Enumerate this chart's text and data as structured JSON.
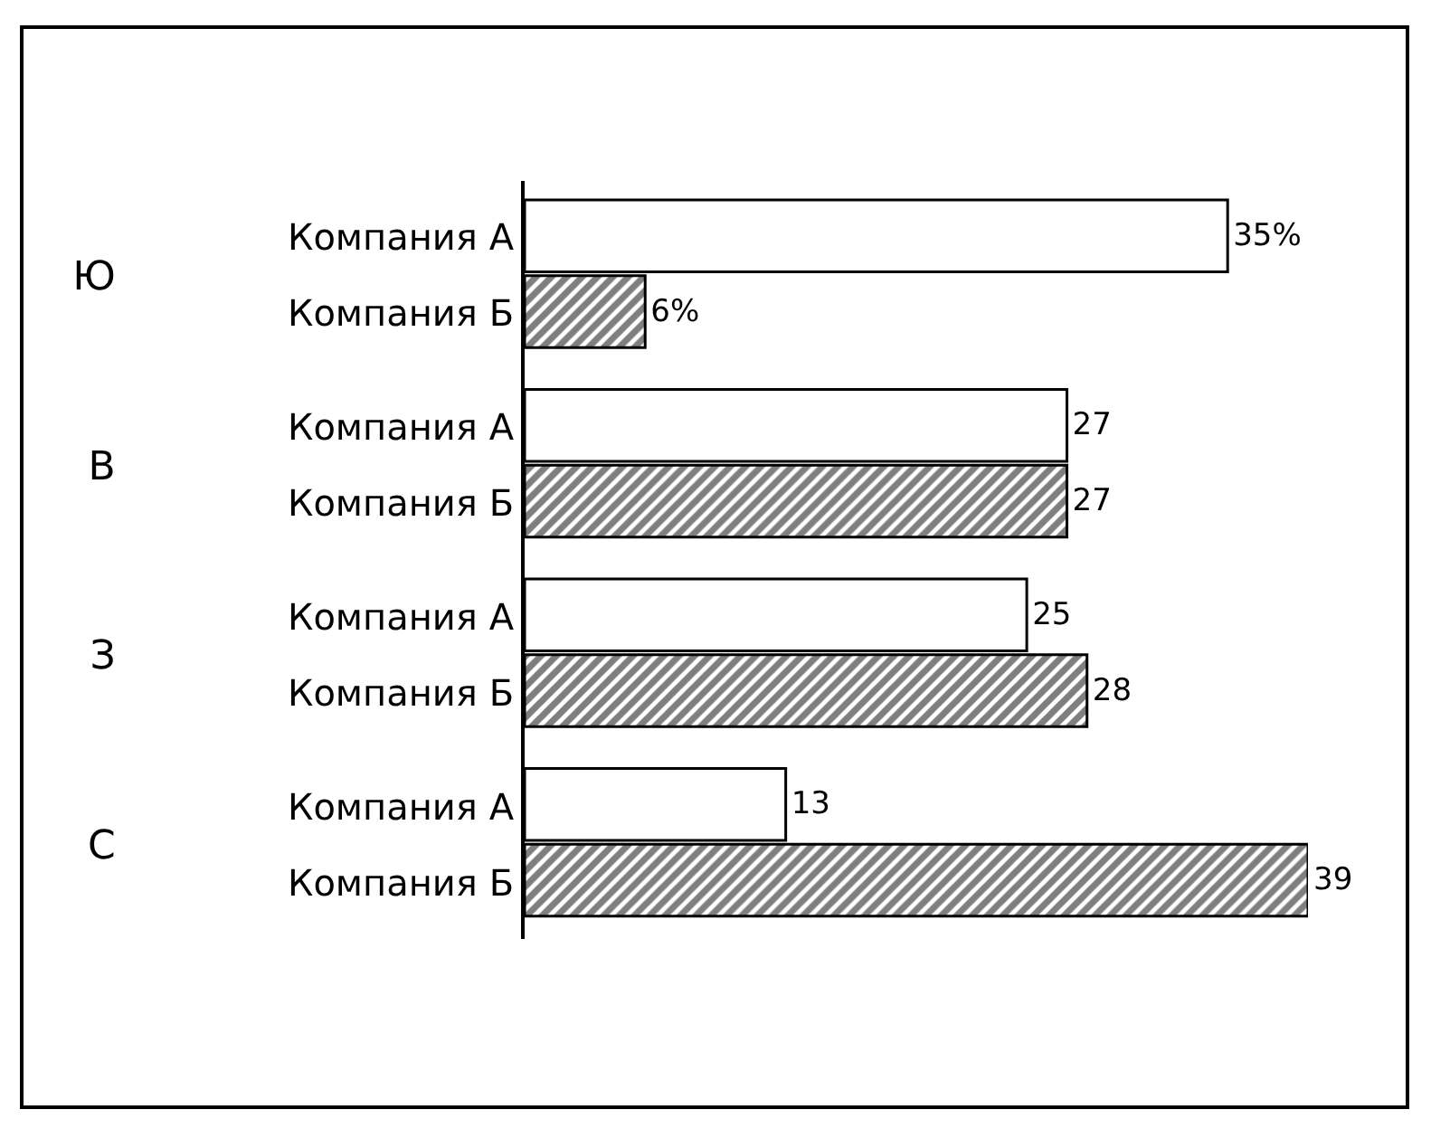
{
  "chart_data": {
    "type": "bar",
    "orientation": "horizontal",
    "categories": [
      "Ю",
      "В",
      "З",
      "С"
    ],
    "series": [
      {
        "name": "Компания А",
        "color": "#ffffff",
        "values": [
          35,
          27,
          25,
          13
        ],
        "value_labels": [
          "35%",
          "27",
          "25",
          "13"
        ]
      },
      {
        "name": "Компания Б",
        "color": "#000000",
        "values": [
          6,
          27,
          28,
          39
        ],
        "value_labels": [
          "6%",
          "27",
          "28",
          "39"
        ]
      }
    ],
    "legend": false
  }
}
